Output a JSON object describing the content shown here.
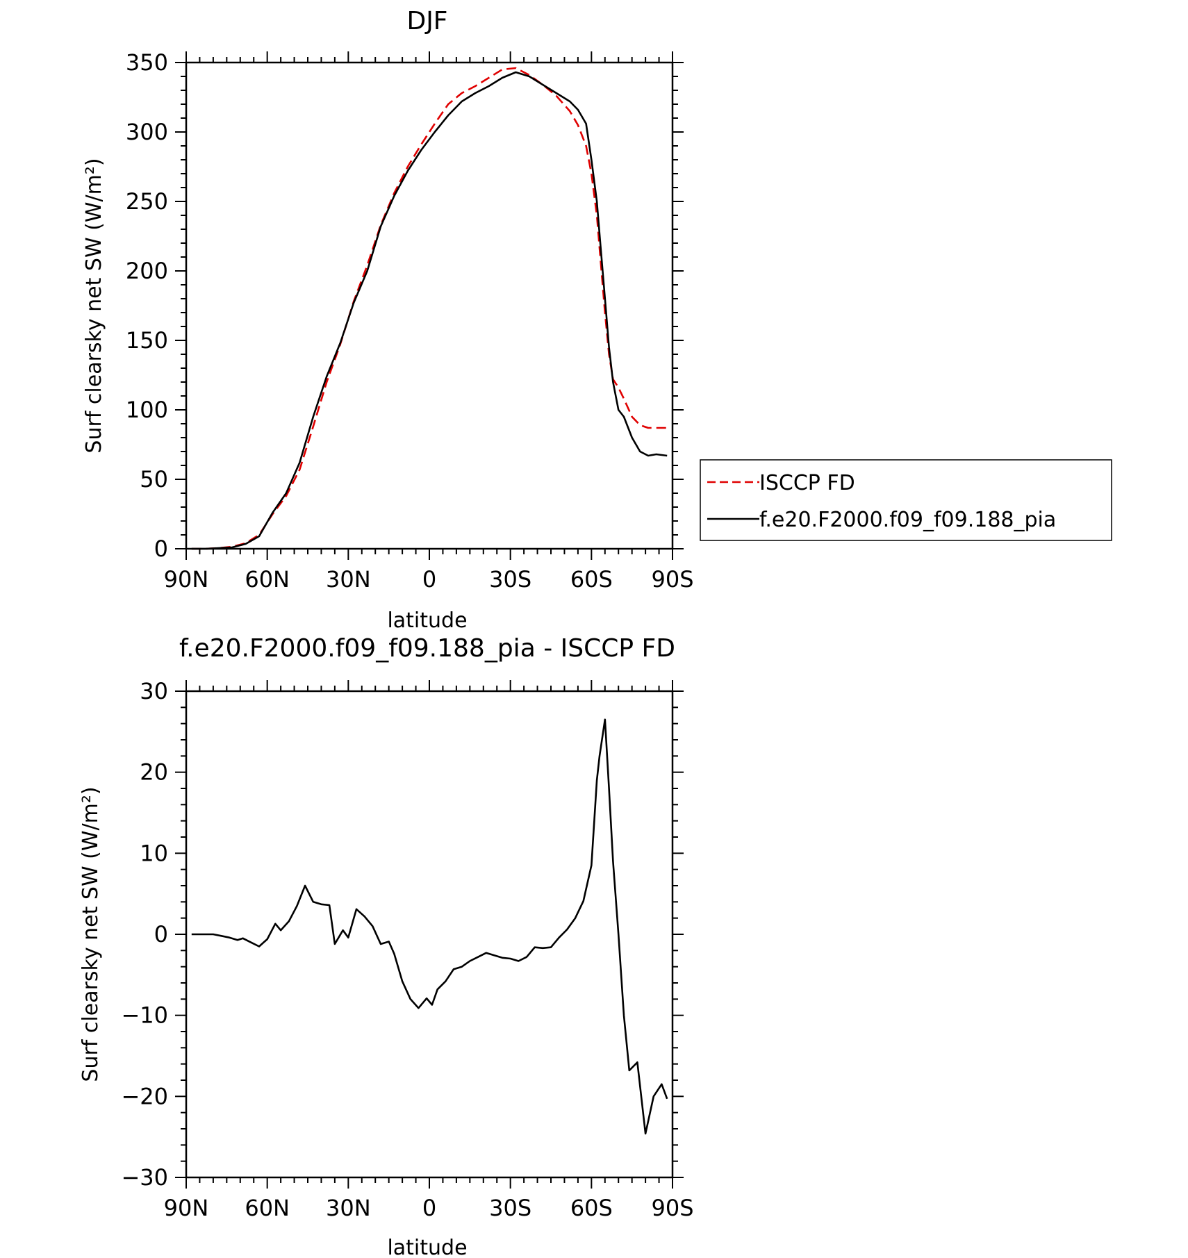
{
  "chart_data": [
    {
      "type": "line",
      "title": "DJF",
      "xlabel": "latitude",
      "ylabel": "Surf clearsky net SW (W/m²)",
      "xlim": [
        -90,
        90
      ],
      "ylim": [
        0,
        350
      ],
      "x_ticks": [
        -90,
        -60,
        -30,
        0,
        30,
        60,
        90
      ],
      "x_tick_labels": [
        "90N",
        "60N",
        "30N",
        "0",
        "30S",
        "60S",
        "90S"
      ],
      "y_ticks": [
        0,
        50,
        100,
        150,
        200,
        250,
        300,
        350
      ],
      "y_tick_labels": [
        "0",
        "50",
        "100",
        "150",
        "200",
        "250",
        "300",
        "350"
      ],
      "legend_position": "right",
      "series": [
        {
          "name": "ISCCP FD",
          "color": "#e00000",
          "dash": "dashed",
          "x": [
            -88,
            -83,
            -78,
            -73,
            -68,
            -63,
            -58,
            -53,
            -48,
            -43,
            -38,
            -33,
            -28,
            -23,
            -18,
            -13,
            -8,
            -3,
            2,
            7,
            12,
            17,
            22,
            27,
            32,
            37,
            42,
            47,
            52,
            55,
            58,
            60,
            62,
            63.5,
            65,
            66.5,
            68,
            70,
            72,
            75,
            78,
            81,
            84,
            88
          ],
          "values": [
            0,
            0,
            0.5,
            1.5,
            4,
            10,
            25,
            38,
            57,
            88,
            120,
            147,
            178,
            204,
            233,
            256,
            275,
            291,
            306,
            320,
            328,
            333,
            339,
            345,
            346,
            341,
            334,
            326,
            315,
            305,
            290,
            270,
            240,
            205,
            170,
            140,
            122,
            116,
            108,
            95,
            89,
            87,
            87,
            87
          ]
        },
        {
          "name": "f.e20.F2000.f09_f09.188_pia",
          "color": "#000000",
          "dash": "solid",
          "x": [
            -88,
            -83,
            -78,
            -73,
            -68,
            -63,
            -58,
            -53,
            -48,
            -43,
            -38,
            -33,
            -28,
            -23,
            -18,
            -13,
            -8,
            -3,
            2,
            7,
            12,
            17,
            22,
            27,
            32,
            37,
            42,
            47,
            52,
            55,
            58,
            60,
            62,
            63.5,
            65,
            66.5,
            68,
            70,
            72,
            75,
            78,
            81,
            84,
            88
          ],
          "values": [
            0,
            0,
            0.5,
            1,
            3.5,
            9,
            26,
            40,
            62,
            95,
            124,
            148,
            177,
            200,
            232,
            254,
            272,
            287,
            300,
            312,
            322,
            328,
            333,
            339,
            343,
            340,
            334,
            328,
            322,
            316,
            306,
            280,
            250,
            215,
            180,
            145,
            120,
            100,
            95,
            80,
            70,
            67,
            68,
            67
          ]
        }
      ]
    },
    {
      "type": "line",
      "title": "f.e20.F2000.f09_f09.188_pia - ISCCP FD",
      "xlabel": "latitude",
      "ylabel": "Surf clearsky net SW (W/m²)",
      "xlim": [
        -90,
        90
      ],
      "ylim": [
        -30,
        30
      ],
      "x_ticks": [
        -90,
        -60,
        -30,
        0,
        30,
        60,
        90
      ],
      "x_tick_labels": [
        "90N",
        "60N",
        "30N",
        "0",
        "30S",
        "60S",
        "90S"
      ],
      "y_ticks": [
        -30,
        -20,
        -10,
        0,
        10,
        20,
        30
      ],
      "y_tick_labels": [
        "−30",
        "−20",
        "−10",
        "0",
        "10",
        "20",
        "30"
      ],
      "series": [
        {
          "color": "#000000",
          "dash": "solid",
          "x": [
            -88,
            -83,
            -80,
            -77,
            -74,
            -71,
            -69,
            -66,
            -63,
            -60,
            -57,
            -55,
            -52,
            -49,
            -46,
            -43,
            -40,
            -37,
            -35,
            -32,
            -30,
            -27,
            -24,
            -21,
            -18,
            -15,
            -13,
            -10,
            -7,
            -4,
            -1,
            1,
            3,
            6,
            9,
            12,
            15,
            18,
            21,
            24,
            27,
            30,
            33,
            36,
            39,
            42,
            45,
            48,
            51,
            54,
            57,
            60,
            62,
            63,
            65,
            66.5,
            68,
            70,
            72,
            74,
            77,
            80,
            83,
            86,
            88
          ],
          "values": [
            0,
            0,
            0,
            -0.2,
            -0.4,
            -0.7,
            -0.5,
            -1,
            -1.5,
            -0.6,
            1.3,
            0.5,
            1.6,
            3.5,
            6,
            4,
            3.7,
            3.6,
            -1.2,
            0.5,
            -0.4,
            3.1,
            2.2,
            1,
            -1.2,
            -0.9,
            -2.4,
            -5.8,
            -8,
            -9.1,
            -7.9,
            -8.7,
            -6.8,
            -5.8,
            -4.3,
            -4,
            -3.3,
            -2.8,
            -2.3,
            -2.6,
            -2.9,
            -3,
            -3.3,
            -2.8,
            -1.6,
            -1.7,
            -1.6,
            -0.4,
            0.6,
            2,
            4.1,
            8.5,
            19,
            22,
            26.5,
            18,
            9,
            0,
            -10,
            -16.8,
            -15.8,
            -24.6,
            -20,
            -18.5,
            -20.3
          ]
        }
      ]
    }
  ]
}
